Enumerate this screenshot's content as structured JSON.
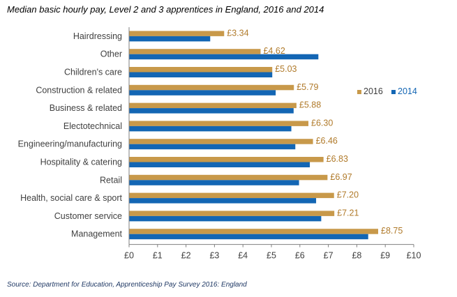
{
  "colors": {
    "series_2016": "#c8994a",
    "series_2014": "#1366b4",
    "axis": "#7f7f7f",
    "text": "#404040",
    "label_2016": "#b07a2a"
  },
  "chart_data": {
    "type": "bar",
    "orientation": "horizontal",
    "title": "Median basic hourly pay, Level 2 and 3 apprentices in England, 2016 and 2014",
    "categories": [
      "Hairdressing",
      "Other",
      "Children's care",
      "Construction & related",
      "Business & related",
      "Electotechnical",
      "Engineering/manufacturing",
      "Hospitality & catering",
      "Retail",
      "Health, social care & sport",
      "Customer service",
      "Management"
    ],
    "series": [
      {
        "name": "2016",
        "values": [
          3.34,
          4.62,
          5.03,
          5.79,
          5.88,
          6.3,
          6.46,
          6.83,
          6.97,
          7.2,
          7.21,
          8.75
        ],
        "labels": [
          "£3.34",
          "£4.62",
          "£5.03",
          "£5.79",
          "£5.88",
          "£6.30",
          "£6.46",
          "£6.83",
          "£6.97",
          "£7.20",
          "£7.21",
          "£8.75"
        ]
      },
      {
        "name": "2014",
        "values": [
          2.85,
          6.65,
          5.03,
          5.15,
          5.78,
          5.7,
          5.84,
          6.35,
          5.97,
          6.57,
          6.75,
          8.4
        ]
      }
    ],
    "xlim": [
      0,
      10
    ],
    "xticks": [
      "£0",
      "£1",
      "£2",
      "£3",
      "£4",
      "£5",
      "£6",
      "£7",
      "£8",
      "£9",
      "£10"
    ],
    "legend_position": "right",
    "grid": false
  },
  "source": "Source: Department for Education, Apprenticeship Pay Survey 2016: England"
}
